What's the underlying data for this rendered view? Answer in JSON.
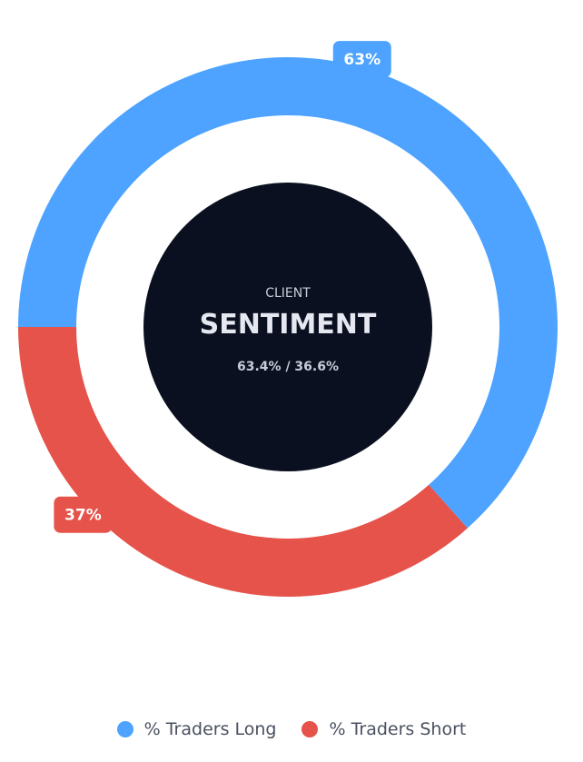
{
  "chart_data": {
    "type": "pie",
    "variant": "donut",
    "center": {
      "kicker": "CLIENT",
      "title": "SENTIMENT",
      "subtitle": "63.4% / 36.6%"
    },
    "series": [
      {
        "name": "% Traders Long",
        "value": 63.4,
        "label": "63%",
        "color": "#4da3ff"
      },
      {
        "name": "% Traders Short",
        "value": 36.6,
        "label": "37%",
        "color": "#e5534b"
      }
    ],
    "legend_position": "bottom-center"
  },
  "colors": {
    "center_fill": "#0b1020",
    "center_text": "#e5e8f0",
    "center_subtext": "#c7ccd8",
    "legend_text": "#4a5060"
  }
}
